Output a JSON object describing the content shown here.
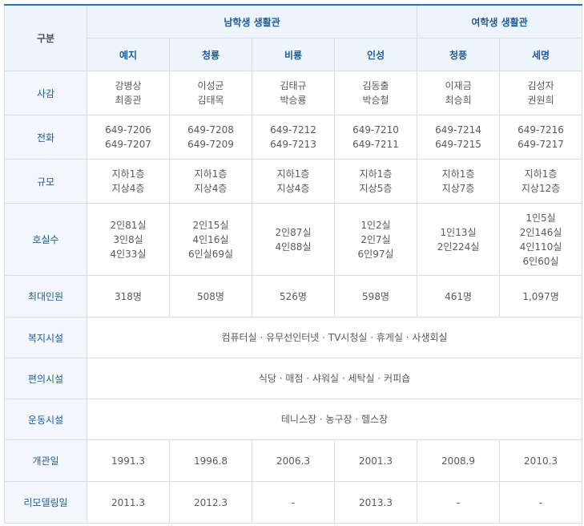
{
  "header": {
    "corner": "구분",
    "groups": [
      "남학생 생활관",
      "여학생 생활관"
    ],
    "dorms": [
      "예지",
      "청룡",
      "비룡",
      "인성",
      "청풍",
      "세명"
    ]
  },
  "rows": {
    "manager": {
      "label": "사감",
      "cells": [
        [
          "강병상",
          "최종관"
        ],
        [
          "이성균",
          "김태목"
        ],
        [
          "김태규",
          "박승룡"
        ],
        [
          "김동출",
          "박승철"
        ],
        [
          "이재금",
          "최승희"
        ],
        [
          "김성자",
          "권원희"
        ]
      ]
    },
    "phone": {
      "label": "전화",
      "cells": [
        [
          "649-7206",
          "649-7207"
        ],
        [
          "649-7208",
          "649-7209"
        ],
        [
          "649-7212",
          "649-7213"
        ],
        [
          "649-7210",
          "649-7211"
        ],
        [
          "649-7214",
          "649-7215"
        ],
        [
          "649-7216",
          "649-7217"
        ]
      ]
    },
    "scale": {
      "label": "규모",
      "cells": [
        [
          "지하1층",
          "지상4층"
        ],
        [
          "지하1층",
          "지상4층"
        ],
        [
          "지하1층",
          "지상4층"
        ],
        [
          "지하1층",
          "지상5층"
        ],
        [
          "지하1층",
          "지상7층"
        ],
        [
          "지하1층",
          "지상12층"
        ]
      ]
    },
    "rooms": {
      "label": "호실수",
      "cells": [
        [
          "2인81실",
          "3인8실",
          "4인33실"
        ],
        [
          "2인15실",
          "4인16실",
          "6인실69실"
        ],
        [
          "2인87실",
          "4인88실"
        ],
        [
          "1인2실",
          "2인7실",
          "6인97실"
        ],
        [
          "1인13실",
          "2인224실"
        ],
        [
          "1인5실",
          "2인146실",
          "4인110실",
          "6인60실"
        ]
      ]
    },
    "capacity": {
      "label": "최대인원",
      "cells": [
        "318명",
        "508명",
        "526명",
        "598명",
        "461명",
        "1,097명"
      ]
    },
    "welfare": {
      "label": "복지시설",
      "value": "컴퓨터실 · 유무선인터넷 · TV시청실 · 휴게실 · 사생회실"
    },
    "convenience": {
      "label": "편의시설",
      "value": "식당 · 매점 · 샤워실 · 세탁실 · 커피숍"
    },
    "sports": {
      "label": "운동시설",
      "value": "테니스장 · 농구장 · 헬스장"
    },
    "opened": {
      "label": "개관일",
      "cells": [
        "1991.3",
        "1996.8",
        "2006.3",
        "2001.3",
        "2008.9",
        "2010.3"
      ]
    },
    "remodeled": {
      "label": "리모델링일",
      "cells": [
        "2011.3",
        "2012.3",
        "-",
        "2013.3",
        "-",
        "-"
      ]
    }
  }
}
